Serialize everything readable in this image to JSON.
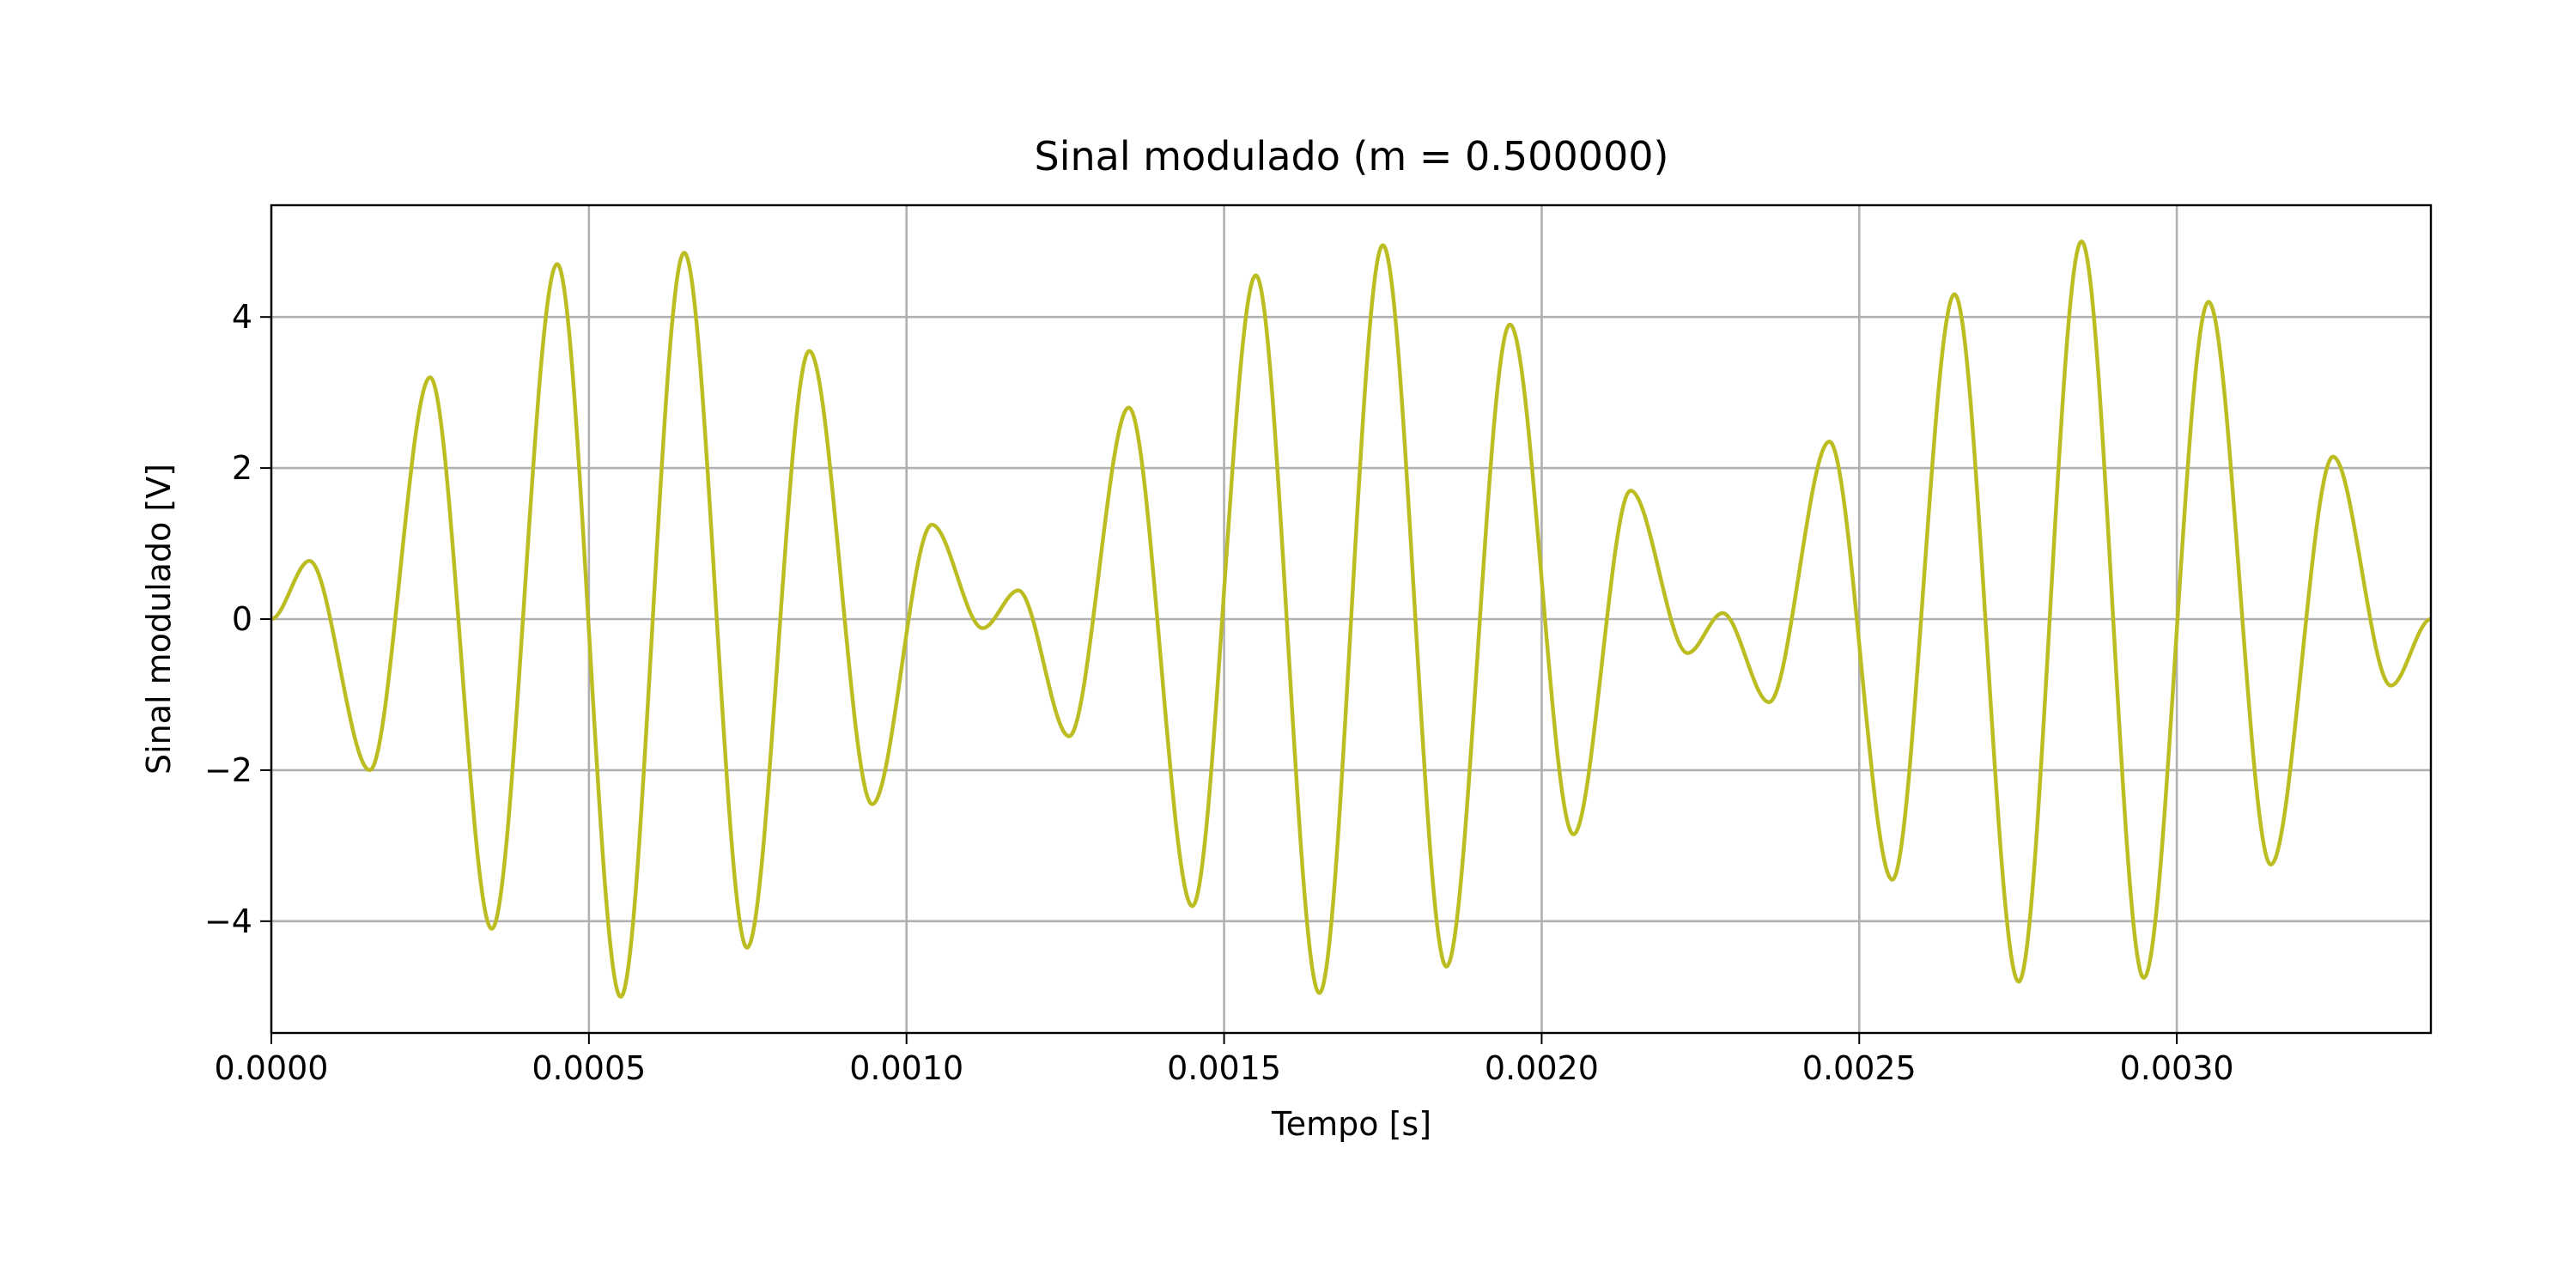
{
  "chart_data": {
    "type": "line",
    "title": "Sinal modulado (m = 0.500000)",
    "x_label": "Tempo [s]",
    "y_label": "Sinal modulado [V]",
    "x": [
      0,
      6e-05,
      0.000155,
      0.00025,
      0.000347,
      0.00045,
      0.00055,
      0.00065,
      0.000749,
      0.000847,
      0.000946,
      0.00104,
      0.00112,
      0.001176,
      0.001256,
      0.00135,
      0.00145,
      0.00155,
      0.00165,
      0.00175,
      0.00185,
      0.00195,
      0.00205,
      0.00214,
      0.00223,
      0.002285,
      0.002358,
      0.002453,
      0.002552,
      0.00265,
      0.002751,
      0.00285,
      0.002948,
      0.00305,
      0.003148,
      0.003246,
      0.003337,
      0.0034
    ],
    "series": [
      {
        "name": "Sinal modulado",
        "color": "#bcbd22",
        "values": [
          0,
          0.77,
          -2.0,
          3.2,
          -4.1,
          4.7,
          -5.0,
          4.85,
          -4.35,
          3.55,
          -2.45,
          1.25,
          -0.12,
          0.38,
          -1.55,
          2.8,
          -3.8,
          4.55,
          -4.95,
          4.95,
          -4.6,
          3.9,
          -2.85,
          1.7,
          -0.45,
          0.08,
          -1.1,
          2.35,
          -3.45,
          4.3,
          -4.8,
          5.0,
          -4.75,
          4.2,
          -3.25,
          2.15,
          -0.88,
          0
        ]
      }
    ],
    "xlim": [
      0,
      0.0034
    ],
    "ylim": [
      -5.48,
      5.48
    ],
    "xticks": [
      {
        "value": 0,
        "label": "0.0000"
      },
      {
        "value": 0.0005,
        "label": "0.0005"
      },
      {
        "value": 0.001,
        "label": "0.0010"
      },
      {
        "value": 0.0015,
        "label": "0.0015"
      },
      {
        "value": 0.002,
        "label": "0.0020"
      },
      {
        "value": 0.0025,
        "label": "0.0025"
      },
      {
        "value": 0.003,
        "label": "0.0030"
      }
    ],
    "yticks": [
      {
        "value": -4,
        "label": "−4"
      },
      {
        "value": -2,
        "label": "−2"
      },
      0,
      2,
      4
    ],
    "grid": true
  }
}
